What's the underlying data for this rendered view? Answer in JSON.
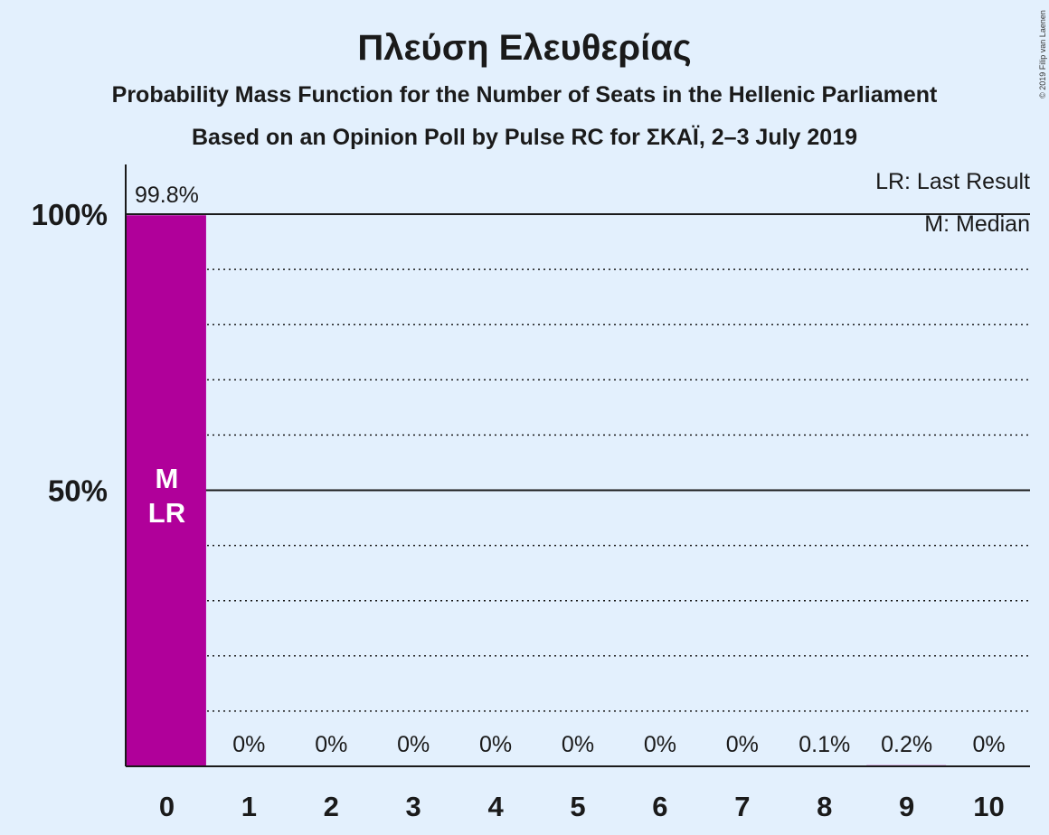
{
  "chart_data": {
    "type": "bar",
    "title": "Πλεύση Ελευθερίας",
    "subtitle": "Probability Mass Function for the Number of Seats in the Hellenic Parliament",
    "subtitle2": "Based on an Opinion Poll by Pulse RC for ΣΚΑΪ, 2–3 July 2019",
    "categories": [
      "0",
      "1",
      "2",
      "3",
      "4",
      "5",
      "6",
      "7",
      "8",
      "9",
      "10"
    ],
    "values": [
      99.8,
      0,
      0,
      0,
      0,
      0,
      0,
      0,
      0.1,
      0.2,
      0
    ],
    "value_labels": [
      "99.8%",
      "0%",
      "0%",
      "0%",
      "0%",
      "0%",
      "0%",
      "0%",
      "0.1%",
      "0.2%",
      "0%"
    ],
    "ylim": [
      0,
      110
    ],
    "yticks": [
      {
        "value": 50,
        "label": "50%"
      },
      {
        "value": 100,
        "label": "100%"
      }
    ],
    "gridlines": [
      10,
      20,
      30,
      40,
      60,
      70,
      80,
      90
    ],
    "bar_markers": {
      "0": [
        "M",
        "LR"
      ]
    },
    "legend": [
      "LR: Last Result",
      "M: Median"
    ],
    "legend_position": "top-right",
    "bar_color": "#b0009a",
    "copyright": "© 2019 Filip van Laenen"
  }
}
